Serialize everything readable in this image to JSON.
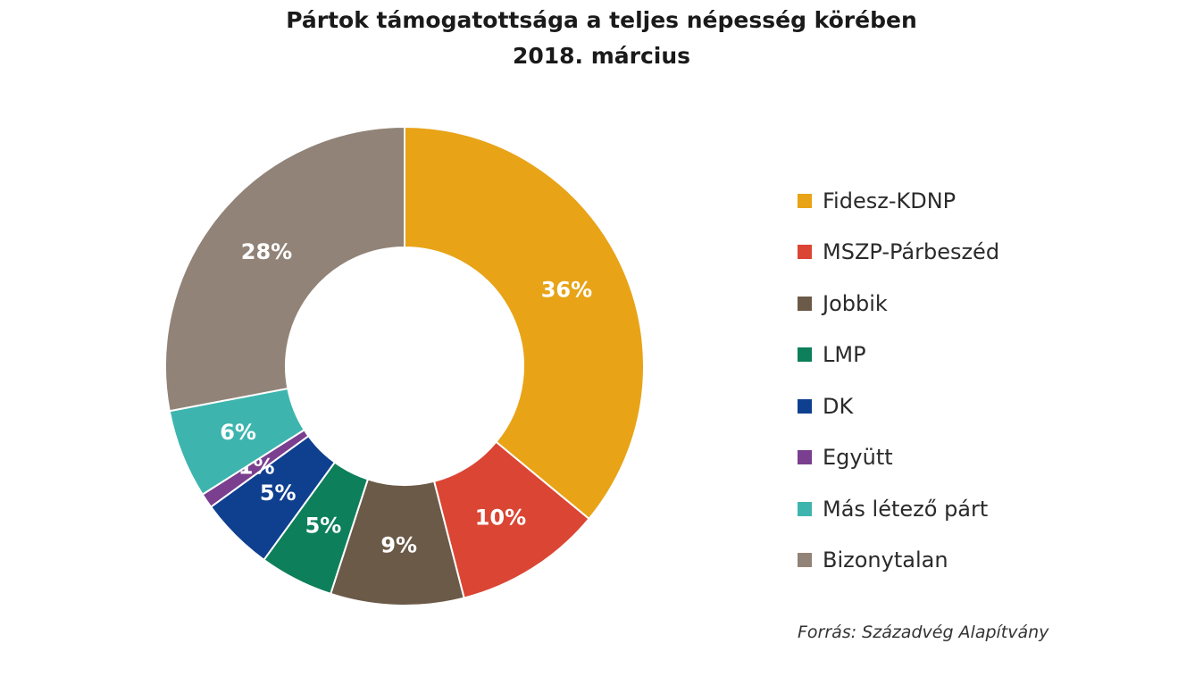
{
  "chart_data": {
    "type": "pie",
    "donut": true,
    "title": "Pártok támogatottsága a teljes népesség körében",
    "subtitle": "2018. március",
    "categories": [
      "Fidesz-KDNP",
      "MSZP-Párbeszéd",
      "Jobbik",
      "LMP",
      "DK",
      "Együtt",
      "Más létező párt",
      "Bizonytalan"
    ],
    "values": [
      36,
      10,
      9,
      5,
      5,
      1,
      6,
      28
    ],
    "data_labels": [
      "36%",
      "10%",
      "9%",
      "5%",
      "5%",
      "1%",
      "6%",
      "28%"
    ],
    "colors": [
      "#E8A317",
      "#DB4534",
      "#6B5A48",
      "#0D7F5A",
      "#0F3F8F",
      "#7A3F8E",
      "#3DB5AE",
      "#918377"
    ],
    "legend_position": "right",
    "source": "Forrás: Századvég Alapítvány"
  }
}
